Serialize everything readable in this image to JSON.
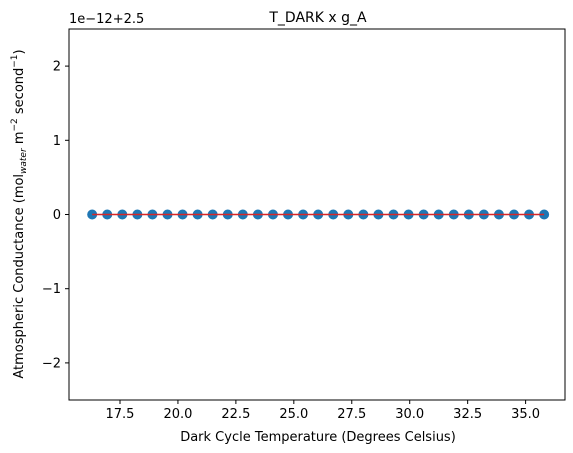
{
  "chart_data": {
    "type": "scatter",
    "title": "T_DARK x g_A",
    "xlabel": "Dark Cycle Temperature (Degrees Celsius)",
    "ylabel_parts": {
      "main": "Atmospheric Conductance (mol",
      "sub": "water",
      "mid": " m",
      "sup1": "−2",
      "mid2": " second",
      "sup2": "−1",
      "end": ")"
    },
    "offset_text": "1e−12+2.5",
    "xlim": [
      15.3,
      36.7
    ],
    "ylim": [
      -2.5,
      2.5
    ],
    "x_ticks": [
      17.5,
      20.0,
      22.5,
      25.0,
      27.5,
      30.0,
      32.5,
      35.0
    ],
    "x_tick_labels": [
      "17.5",
      "20.0",
      "22.5",
      "25.0",
      "27.5",
      "30.0",
      "32.5",
      "35.0"
    ],
    "y_ticks": [
      -2,
      -1,
      0,
      1,
      2
    ],
    "y_tick_labels": [
      "−2",
      "−1",
      "0",
      "1",
      "2"
    ],
    "x": [
      16.3,
      16.95,
      17.6,
      18.25,
      18.9,
      19.55,
      20.2,
      20.85,
      21.5,
      22.15,
      22.8,
      23.45,
      24.1,
      24.75,
      25.4,
      26.05,
      26.7,
      27.35,
      28.0,
      28.65,
      29.3,
      29.95,
      30.6,
      31.25,
      31.9,
      32.55,
      33.2,
      33.85,
      34.5,
      35.15,
      35.8
    ],
    "y": [
      0,
      0,
      0,
      0,
      0,
      0,
      0,
      0,
      0,
      0,
      0,
      0,
      0,
      0,
      0,
      0,
      0,
      0,
      0,
      0,
      0,
      0,
      0,
      0,
      0,
      0,
      0,
      0,
      0,
      0,
      0
    ],
    "fit_line": {
      "x": [
        16.3,
        35.8
      ],
      "y": [
        0,
        0
      ]
    },
    "point_color": "#1f77b4",
    "line_color": "#d62728",
    "grid": false,
    "legend": "none"
  }
}
